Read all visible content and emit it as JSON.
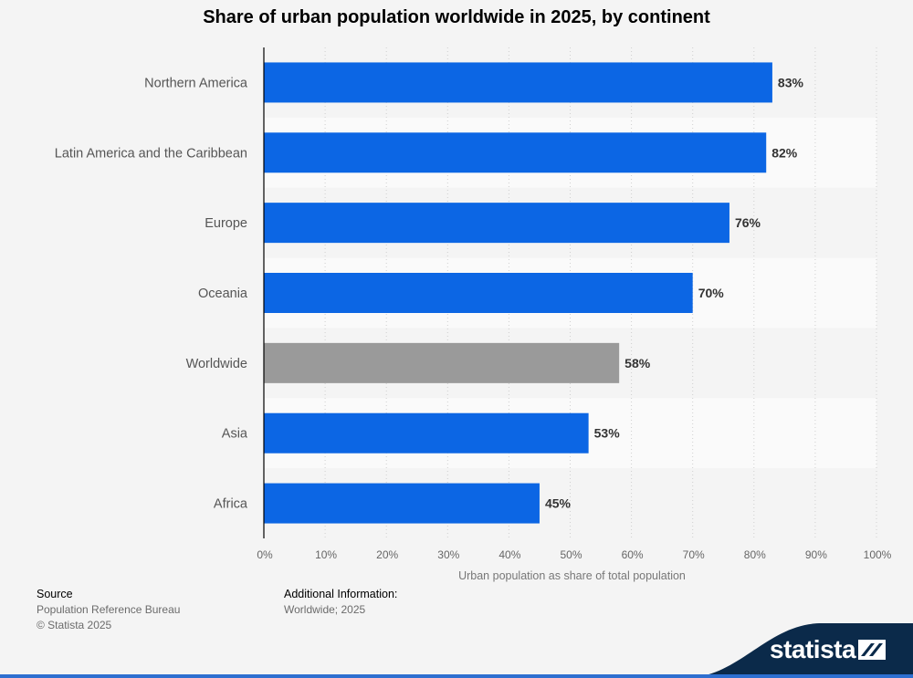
{
  "title": "Share of urban population worldwide in 2025, by continent",
  "chart_data": {
    "type": "bar",
    "orientation": "horizontal",
    "categories": [
      "Northern America",
      "Latin America and the Caribbean",
      "Europe",
      "Oceania",
      "Worldwide",
      "Asia",
      "Africa"
    ],
    "values": [
      83,
      82,
      76,
      70,
      58,
      53,
      45
    ],
    "value_labels": [
      "83%",
      "82%",
      "76%",
      "70%",
      "58%",
      "53%",
      "45%"
    ],
    "bar_colors": [
      "#0c66e4",
      "#0c66e4",
      "#0c66e4",
      "#0c66e4",
      "#9a9a9a",
      "#0c66e4",
      "#0c66e4"
    ],
    "xlim": [
      0,
      100
    ],
    "x_ticks": [
      "0%",
      "10%",
      "20%",
      "30%",
      "40%",
      "50%",
      "60%",
      "70%",
      "80%",
      "90%",
      "100%"
    ],
    "xlabel": "Urban population as share of total population",
    "grid": "vertical dotted",
    "legend": "none"
  },
  "footer": {
    "source_heading": "Source",
    "source_lines": [
      "Population Reference Bureau",
      "© Statista 2025"
    ],
    "info_heading": "Additional Information:",
    "info_line": "Worldwide; 2025"
  },
  "brand": {
    "name": "statista",
    "color": "#0b2a4a"
  }
}
